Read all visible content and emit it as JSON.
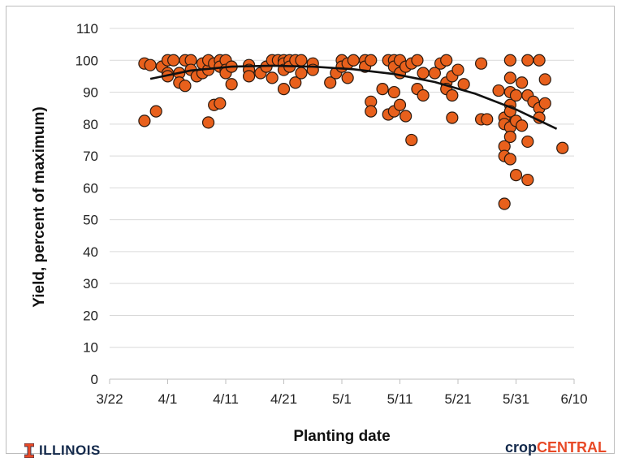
{
  "chart_data": {
    "type": "scatter",
    "xlabel": "Planting date",
    "ylabel": "Yield, percent of  maximum)",
    "xlim": [
      "3/22",
      "6/10"
    ],
    "ylim": [
      0,
      110
    ],
    "x_ticks": [
      "3/22",
      "4/1",
      "4/11",
      "4/21",
      "5/1",
      "5/11",
      "5/21",
      "5/31",
      "6/10"
    ],
    "y_ticks": [
      0,
      10,
      20,
      30,
      40,
      50,
      60,
      70,
      80,
      90,
      100,
      110
    ],
    "grid": "horizontal",
    "legend": "none",
    "marker_color": "#e8601c",
    "marker_edge": "#2a1a10",
    "trend_color": "#111111",
    "trendline": [
      {
        "x": "3/29",
        "y": 94.2
      },
      {
        "x": "4/5",
        "y": 96.8
      },
      {
        "x": "4/12",
        "y": 98.0
      },
      {
        "x": "4/19",
        "y": 98.3
      },
      {
        "x": "4/26",
        "y": 98.0
      },
      {
        "x": "5/3",
        "y": 97.2
      },
      {
        "x": "5/10",
        "y": 95.7
      },
      {
        "x": "5/17",
        "y": 93.2
      },
      {
        "x": "5/24",
        "y": 89.5
      },
      {
        "x": "5/31",
        "y": 84.6
      },
      {
        "x": "6/7",
        "y": 78.5
      }
    ],
    "points": [
      {
        "x": "3/28",
        "y": 99
      },
      {
        "x": "3/28",
        "y": 81
      },
      {
        "x": "3/29",
        "y": 98.5
      },
      {
        "x": "3/30",
        "y": 84
      },
      {
        "x": "3/31",
        "y": 98
      },
      {
        "x": "4/1",
        "y": 100
      },
      {
        "x": "4/1",
        "y": 96
      },
      {
        "x": "4/1",
        "y": 95
      },
      {
        "x": "4/2",
        "y": 100
      },
      {
        "x": "4/3",
        "y": 96
      },
      {
        "x": "4/3",
        "y": 93
      },
      {
        "x": "4/4",
        "y": 100
      },
      {
        "x": "4/4",
        "y": 92
      },
      {
        "x": "4/5",
        "y": 100
      },
      {
        "x": "4/5",
        "y": 97
      },
      {
        "x": "4/6",
        "y": 95
      },
      {
        "x": "4/7",
        "y": 96
      },
      {
        "x": "4/7",
        "y": 99
      },
      {
        "x": "4/8",
        "y": 97
      },
      {
        "x": "4/8",
        "y": 100
      },
      {
        "x": "4/8",
        "y": 80.5
      },
      {
        "x": "4/9",
        "y": 99
      },
      {
        "x": "4/9",
        "y": 86
      },
      {
        "x": "4/10",
        "y": 100
      },
      {
        "x": "4/10",
        "y": 98
      },
      {
        "x": "4/10",
        "y": 86.5
      },
      {
        "x": "4/11",
        "y": 100
      },
      {
        "x": "4/11",
        "y": 97
      },
      {
        "x": "4/11",
        "y": 96
      },
      {
        "x": "4/12",
        "y": 98
      },
      {
        "x": "4/12",
        "y": 92.5
      },
      {
        "x": "4/15",
        "y": 98.5
      },
      {
        "x": "4/15",
        "y": 97
      },
      {
        "x": "4/15",
        "y": 95
      },
      {
        "x": "4/17",
        "y": 96
      },
      {
        "x": "4/18",
        "y": 98
      },
      {
        "x": "4/19",
        "y": 100
      },
      {
        "x": "4/19",
        "y": 94.5
      },
      {
        "x": "4/20",
        "y": 100
      },
      {
        "x": "4/21",
        "y": 100
      },
      {
        "x": "4/21",
        "y": 99
      },
      {
        "x": "4/21",
        "y": 97
      },
      {
        "x": "4/21",
        "y": 91
      },
      {
        "x": "4/22",
        "y": 100
      },
      {
        "x": "4/22",
        "y": 98
      },
      {
        "x": "4/23",
        "y": 100
      },
      {
        "x": "4/23",
        "y": 93
      },
      {
        "x": "4/24",
        "y": 96
      },
      {
        "x": "4/24",
        "y": 100
      },
      {
        "x": "4/26",
        "y": 99
      },
      {
        "x": "4/26",
        "y": 97
      },
      {
        "x": "4/29",
        "y": 93
      },
      {
        "x": "4/30",
        "y": 96
      },
      {
        "x": "5/1",
        "y": 100
      },
      {
        "x": "5/1",
        "y": 98
      },
      {
        "x": "5/2",
        "y": 94.5
      },
      {
        "x": "5/2",
        "y": 99
      },
      {
        "x": "5/3",
        "y": 100
      },
      {
        "x": "5/5",
        "y": 100
      },
      {
        "x": "5/5",
        "y": 98
      },
      {
        "x": "5/6",
        "y": 100
      },
      {
        "x": "5/6",
        "y": 87
      },
      {
        "x": "5/6",
        "y": 84
      },
      {
        "x": "5/8",
        "y": 91
      },
      {
        "x": "5/9",
        "y": 100
      },
      {
        "x": "5/9",
        "y": 83
      },
      {
        "x": "5/10",
        "y": 100
      },
      {
        "x": "5/10",
        "y": 98
      },
      {
        "x": "5/10",
        "y": 90
      },
      {
        "x": "5/10",
        "y": 84
      },
      {
        "x": "5/11",
        "y": 100
      },
      {
        "x": "5/11",
        "y": 96
      },
      {
        "x": "5/11",
        "y": 86
      },
      {
        "x": "5/12",
        "y": 98
      },
      {
        "x": "5/12",
        "y": 82.5
      },
      {
        "x": "5/13",
        "y": 99
      },
      {
        "x": "5/13",
        "y": 75
      },
      {
        "x": "5/14",
        "y": 100
      },
      {
        "x": "5/14",
        "y": 91
      },
      {
        "x": "5/15",
        "y": 96
      },
      {
        "x": "5/15",
        "y": 89
      },
      {
        "x": "5/17",
        "y": 96
      },
      {
        "x": "5/18",
        "y": 99
      },
      {
        "x": "5/19",
        "y": 100
      },
      {
        "x": "5/19",
        "y": 93
      },
      {
        "x": "5/19",
        "y": 91
      },
      {
        "x": "5/20",
        "y": 95
      },
      {
        "x": "5/20",
        "y": 89
      },
      {
        "x": "5/20",
        "y": 82
      },
      {
        "x": "5/21",
        "y": 97
      },
      {
        "x": "5/22",
        "y": 92.5
      },
      {
        "x": "5/25",
        "y": 99
      },
      {
        "x": "5/25",
        "y": 81.5
      },
      {
        "x": "5/26",
        "y": 81.5
      },
      {
        "x": "5/28",
        "y": 90.5
      },
      {
        "x": "5/29",
        "y": 82
      },
      {
        "x": "5/29",
        "y": 80
      },
      {
        "x": "5/29",
        "y": 73
      },
      {
        "x": "5/29",
        "y": 70
      },
      {
        "x": "5/29",
        "y": 55
      },
      {
        "x": "5/30",
        "y": 100
      },
      {
        "x": "5/30",
        "y": 94.5
      },
      {
        "x": "5/30",
        "y": 90
      },
      {
        "x": "5/30",
        "y": 86
      },
      {
        "x": "5/30",
        "y": 84
      },
      {
        "x": "5/30",
        "y": 79
      },
      {
        "x": "5/30",
        "y": 76
      },
      {
        "x": "5/30",
        "y": 69
      },
      {
        "x": "5/31",
        "y": 89
      },
      {
        "x": "5/31",
        "y": 81
      },
      {
        "x": "5/31",
        "y": 64
      },
      {
        "x": "6/1",
        "y": 93
      },
      {
        "x": "6/1",
        "y": 79.5
      },
      {
        "x": "6/2",
        "y": 100
      },
      {
        "x": "6/2",
        "y": 89
      },
      {
        "x": "6/2",
        "y": 74.5
      },
      {
        "x": "6/2",
        "y": 62.5
      },
      {
        "x": "6/3",
        "y": 87
      },
      {
        "x": "6/4",
        "y": 100
      },
      {
        "x": "6/4",
        "y": 85
      },
      {
        "x": "6/4",
        "y": 82
      },
      {
        "x": "6/5",
        "y": 94
      },
      {
        "x": "6/5",
        "y": 86.5
      },
      {
        "x": "6/8",
        "y": 72.5
      }
    ]
  },
  "logos": {
    "illinois": "ILLINOIS",
    "crop": "crop",
    "central": "CENTRAL"
  }
}
